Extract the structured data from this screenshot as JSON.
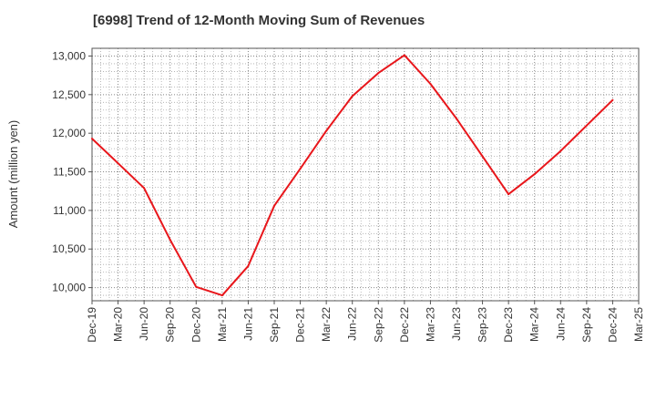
{
  "chart_data": {
    "type": "line",
    "title": "[6998]  Trend of 12-Month Moving Sum of Revenues",
    "xlabel": "",
    "ylabel": "Amount (million yen)",
    "ylim": [
      9830,
      13100
    ],
    "yticks": [
      10000,
      10500,
      11000,
      11500,
      12000,
      12500,
      13000
    ],
    "ytick_labels": [
      "10,000",
      "10,500",
      "11,000",
      "11,500",
      "12,000",
      "12,500",
      "13,000"
    ],
    "categories": [
      "Dec-19",
      "Mar-20",
      "Jun-20",
      "Sep-20",
      "Dec-20",
      "Mar-21",
      "Jun-21",
      "Sep-21",
      "Dec-21",
      "Mar-22",
      "Jun-22",
      "Sep-22",
      "Dec-22",
      "Mar-23",
      "Jun-23",
      "Sep-23",
      "Dec-23",
      "Mar-24",
      "Jun-24",
      "Sep-24",
      "Dec-24",
      "Mar-25"
    ],
    "series": [
      {
        "color": "#e8161b",
        "values": [
          11930,
          11610,
          11290,
          10620,
          10010,
          9900,
          10280,
          11060,
          11540,
          12030,
          12480,
          12780,
          13010,
          12640,
          12190,
          11700,
          11210,
          11470,
          11770,
          12100,
          12430,
          null
        ]
      }
    ],
    "grid": true,
    "grid_style": "dotted",
    "legend": "none"
  }
}
